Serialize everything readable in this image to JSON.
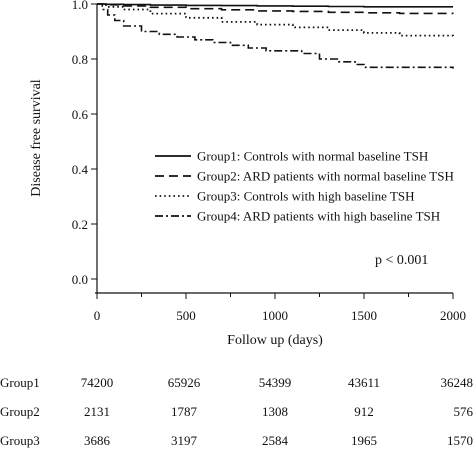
{
  "chart_data": {
    "type": "line",
    "title": "",
    "xlabel": "Follow up (days)",
    "ylabel": "Disease free survival",
    "xlim": [
      0,
      2000
    ],
    "ylim": [
      0.0,
      1.0
    ],
    "x_ticks": [
      "0",
      "500",
      "1000",
      "1500",
      "2000"
    ],
    "y_ticks": [
      "0.0",
      "0.2",
      "0.4",
      "0.6",
      "0.8",
      "1.0"
    ],
    "grid": false,
    "legend_position": "center-right",
    "annotation": "p < 0.001",
    "series": [
      {
        "name": "Group1: Controls with normal baseline TSH",
        "style": "solid",
        "x": [
          0,
          50,
          150,
          300,
          500,
          700,
          900,
          1100,
          1300,
          1500,
          1700,
          2000
        ],
        "y": [
          1.0,
          0.999,
          0.998,
          0.996,
          0.995,
          0.994,
          0.993,
          0.992,
          0.991,
          0.99,
          0.99,
          0.99
        ]
      },
      {
        "name": "Group2: ARD patients with normal baseline TSH",
        "style": "dashed",
        "x": [
          0,
          50,
          150,
          300,
          500,
          700,
          900,
          1100,
          1300,
          1500,
          1700,
          2000
        ],
        "y": [
          1.0,
          0.997,
          0.993,
          0.988,
          0.983,
          0.979,
          0.975,
          0.973,
          0.97,
          0.968,
          0.966,
          0.965
        ]
      },
      {
        "name": "Group3: Controls with high baseline TSH",
        "style": "dotted",
        "x": [
          0,
          50,
          150,
          300,
          500,
          700,
          900,
          1100,
          1300,
          1500,
          1700,
          2000
        ],
        "y": [
          1.0,
          0.99,
          0.98,
          0.965,
          0.95,
          0.935,
          0.925,
          0.915,
          0.905,
          0.895,
          0.885,
          0.875
        ]
      },
      {
        "name": "Group4: ARD patients with high baseline TSH",
        "style": "dashdot",
        "x": [
          0,
          30,
          60,
          100,
          150,
          250,
          350,
          450,
          550,
          650,
          750,
          850,
          950,
          1050,
          1150,
          1250,
          1350,
          1450,
          1500,
          2000
        ],
        "y": [
          1.0,
          0.98,
          0.96,
          0.94,
          0.92,
          0.9,
          0.89,
          0.88,
          0.87,
          0.86,
          0.85,
          0.84,
          0.83,
          0.83,
          0.82,
          0.8,
          0.79,
          0.78,
          0.77,
          0.765
        ]
      }
    ]
  },
  "risk_table": {
    "timepoints": [
      "0",
      "500",
      "1000",
      "1500",
      "2000"
    ],
    "rows": [
      {
        "label": "Group1",
        "values": [
          "74200",
          "65926",
          "54399",
          "43611",
          "36248"
        ]
      },
      {
        "label": "Group2",
        "values": [
          "2131",
          "1787",
          "1308",
          "912",
          "576"
        ]
      },
      {
        "label": "Group3",
        "values": [
          "3686",
          "3197",
          "2584",
          "1965",
          "1570"
        ]
      }
    ]
  }
}
